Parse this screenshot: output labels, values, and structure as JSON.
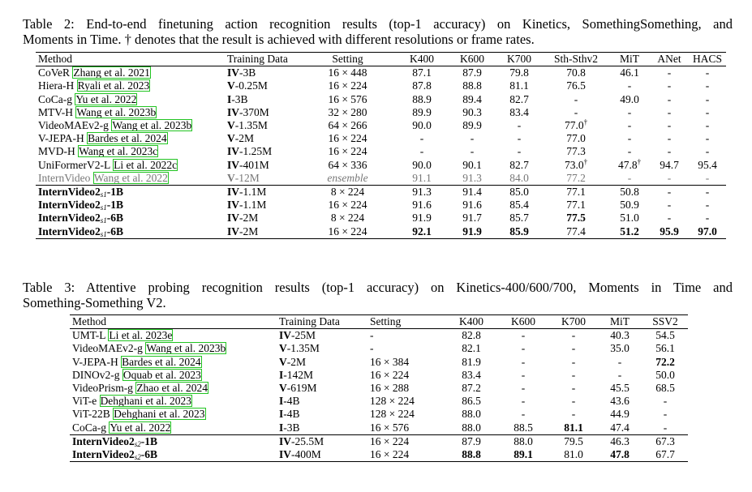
{
  "table2": {
    "caption": {
      "label": "Table 2:",
      "line1": "End-to-end finetuning action recognition results (top-1 accuracy) on Kinetics, SomethingSomething, and",
      "line2": "Moments in Time. † denotes that the result is achieved with different resolutions or frame rates."
    },
    "headers": [
      "Method",
      "Training Data",
      "Setting",
      "K400",
      "K600",
      "K700",
      "Sth-Sthv2",
      "MiT",
      "ANet",
      "HACS"
    ],
    "rows": [
      {
        "method": "CoVeR",
        "cite": "Zhang et al. 2021",
        "data": "IV-3B",
        "setting": "16 × 448",
        "k400": "87.1",
        "k600": "87.9",
        "k700": "79.8",
        "ssv2": "70.8",
        "mit": "46.1",
        "anet": "-",
        "hacs": "-"
      },
      {
        "method": "Hiera-H",
        "cite": "Ryali et al. 2023",
        "data": "V-0.25M",
        "setting": "16 × 224",
        "k400": "87.8",
        "k600": "88.8",
        "k700": "81.1",
        "ssv2": "76.5",
        "mit": "-",
        "anet": "-",
        "hacs": "-"
      },
      {
        "method": "CoCa-g",
        "cite": "Yu et al. 2022",
        "data": "I-3B",
        "setting": "16 × 576",
        "k400": "88.9",
        "k600": "89.4",
        "k700": "82.7",
        "ssv2": "-",
        "mit": "49.0",
        "anet": "-",
        "hacs": "-"
      },
      {
        "method": "MTV-H",
        "cite": "Wang et al. 2023b",
        "data": "IV-370M",
        "setting": "32 × 280",
        "k400": "89.9",
        "k600": "90.3",
        "k700": "83.4",
        "ssv2": "-",
        "mit": "-",
        "anet": "-",
        "hacs": "-"
      },
      {
        "method": "VideoMAEv2-g",
        "cite": "Wang et al. 2023b",
        "data": "V-1.35M",
        "setting": "64 × 266",
        "k400": "90.0",
        "k600": "89.9",
        "k700": "-",
        "ssv2": "77.0†",
        "mit": "-",
        "anet": "-",
        "hacs": "-"
      },
      {
        "method": "V-JEPA-H",
        "cite": "Bardes et al. 2024",
        "data": "V-2M",
        "setting": "16 × 224",
        "k400": "-",
        "k600": "-",
        "k700": "-",
        "ssv2": "77.0",
        "mit": "-",
        "anet": "-",
        "hacs": "-"
      },
      {
        "method": "MVD-H",
        "cite": "Wang et al. 2023c",
        "data": "IV-1.25M",
        "setting": "16 × 224",
        "k400": "-",
        "k600": "-",
        "k700": "-",
        "ssv2": "77.3",
        "mit": "-",
        "anet": "-",
        "hacs": "-"
      },
      {
        "method": "UniFormerV2-L",
        "cite": "Li et al. 2022c",
        "data": "IV-401M",
        "setting": "64 × 336",
        "k400": "90.0",
        "k600": "90.1",
        "k700": "82.7",
        "ssv2": "73.0†",
        "mit": "47.8†",
        "anet": "94.7",
        "hacs": "95.4"
      },
      {
        "method": "InternVideo",
        "cite": "Wang et al. 2022",
        "data": "V-12M",
        "setting": "ensemble",
        "k400": "91.1",
        "k600": "91.3",
        "k700": "84.0",
        "ssv2": "77.2",
        "mit": "-",
        "anet": "-",
        "hacs": "-"
      }
    ],
    "ours": [
      {
        "name": "InternVideo2",
        "sub": "s1",
        "size": "-1B",
        "data": "IV-1.1M",
        "setting": "8 × 224",
        "k400": "91.3",
        "k600": "91.4",
        "k700": "85.0",
        "ssv2": "77.1",
        "mit": "50.8",
        "anet": "-",
        "hacs": "-"
      },
      {
        "name": "InternVideo2",
        "sub": "s1",
        "size": "-1B",
        "data": "IV-1.1M",
        "setting": "16 × 224",
        "k400": "91.6",
        "k600": "91.6",
        "k700": "85.4",
        "ssv2": "77.1",
        "mit": "50.9",
        "anet": "-",
        "hacs": "-"
      },
      {
        "name": "InternVideo2",
        "sub": "s1",
        "size": "-6B",
        "data": "IV-2M",
        "setting": "8 × 224",
        "k400": "91.9",
        "k600": "91.7",
        "k700": "85.7",
        "ssv2": "77.5",
        "mit": "51.0",
        "anet": "-",
        "hacs": "-"
      },
      {
        "name": "InternVideo2",
        "sub": "s1",
        "size": "-6B",
        "data": "IV-2M",
        "setting": "16 × 224",
        "k400": "92.1",
        "k600": "91.9",
        "k700": "85.9",
        "ssv2": "77.4",
        "mit": "51.2",
        "anet": "95.9",
        "hacs": "97.0"
      }
    ]
  },
  "table3": {
    "caption": {
      "label": "Table 3:",
      "line1": "Attentive probing recognition results (top-1 accuracy) on Kinetics-400/600/700, Moments in Time and",
      "line2": "Something-Something V2."
    },
    "headers": [
      "Method",
      "Training Data",
      "Setting",
      "K400",
      "K600",
      "K700",
      "MiT",
      "SSV2"
    ],
    "rows": [
      {
        "method": "UMT-L",
        "cite": "Li et al. 2023e",
        "data": "IV-25M",
        "setting": "-",
        "k400": "82.8",
        "k600": "-",
        "k700": "-",
        "mit": "40.3",
        "ssv2": "54.5"
      },
      {
        "method": "VideoMAEv2-g",
        "cite": "Wang et al. 2023b",
        "data": "V-1.35M",
        "setting": "-",
        "k400": "82.1",
        "k600": "-",
        "k700": "-",
        "mit": "35.0",
        "ssv2": "56.1"
      },
      {
        "method": "V-JEPA-H",
        "cite": "Bardes et al. 2024",
        "data": "V-2M",
        "setting": "16 × 384",
        "k400": "81.9",
        "k600": "-",
        "k700": "-",
        "mit": "-",
        "ssv2": "72.2"
      },
      {
        "method": "DINOv2-g",
        "cite": "Oquab et al. 2023",
        "data": "I-142M",
        "setting": "16 × 224",
        "k400": "83.4",
        "k600": "-",
        "k700": "-",
        "mit": "-",
        "ssv2": "50.0"
      },
      {
        "method": "VideoPrism-g",
        "cite": "Zhao et al. 2024",
        "data": "V-619M",
        "setting": "16 × 288",
        "k400": "87.2",
        "k600": "-",
        "k700": "-",
        "mit": "45.5",
        "ssv2": "68.5"
      },
      {
        "method": "ViT-e",
        "cite": "Dehghani et al. 2023",
        "data": "I-4B",
        "setting": "128 × 224",
        "k400": "86.5",
        "k600": "-",
        "k700": "-",
        "mit": "43.6",
        "ssv2": "-"
      },
      {
        "method": "ViT-22B",
        "cite": "Dehghani et al. 2023",
        "data": "I-4B",
        "setting": "128 × 224",
        "k400": "88.0",
        "k600": "-",
        "k700": "-",
        "mit": "44.9",
        "ssv2": "-"
      },
      {
        "method": "CoCa-g",
        "cite": "Yu et al. 2022",
        "data": "I-3B",
        "setting": "16 × 576",
        "k400": "88.0",
        "k600": "88.5",
        "k700": "81.1",
        "mit": "47.4",
        "ssv2": "-"
      }
    ],
    "ours": [
      {
        "name": "InternVideo2",
        "sub": "s2",
        "size": "-1B",
        "data": "IV-25.5M",
        "setting": "16 × 224",
        "k400": "87.9",
        "k600": "88.0",
        "k700": "79.5",
        "mit": "46.3",
        "ssv2": "67.3"
      },
      {
        "name": "InternVideo2",
        "sub": "s2",
        "size": "-6B",
        "data": "IV-400M",
        "setting": "16 × 224",
        "k400": "88.8",
        "k600": "89.1",
        "k700": "81.0",
        "mit": "47.8",
        "ssv2": "67.7"
      }
    ]
  }
}
